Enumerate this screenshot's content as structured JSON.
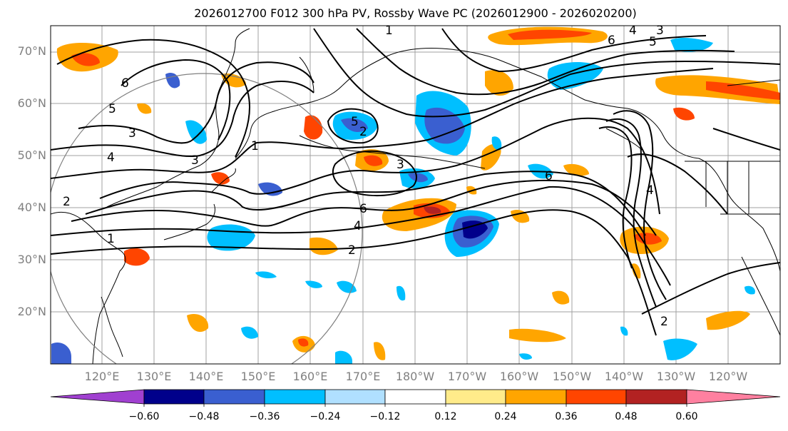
{
  "title": "2026012700 F012 300 hPa PV, Rossby Wave PC (2026012900 - 2026020200)",
  "lat_labels": [
    "70°N",
    "60°N",
    "50°N",
    "40°N",
    "30°N",
    "20°N"
  ],
  "lon_labels": [
    "120°E",
    "130°E",
    "140°E",
    "150°E",
    "160°E",
    "170°E",
    "180°W",
    "170°W",
    "160°W",
    "150°W",
    "140°W",
    "130°W",
    "120°W"
  ],
  "colorbar": {
    "colors": [
      "#a040d0",
      "#00008b",
      "#3a5fd0",
      "#00bfff",
      "#b0e0ff",
      "#ffffff",
      "#ffeb8a",
      "#ffa500",
      "#ff4500",
      "#b22222",
      "#ff80a0"
    ],
    "tick_labels": [
      "−0.60",
      "−0.48",
      "−0.36",
      "−0.24",
      "−0.12",
      "0.12",
      "0.24",
      "0.36",
      "0.48",
      "0.60"
    ]
  },
  "contour_labels": [
    "2",
    "3",
    "4",
    "5",
    "6",
    "1",
    "2",
    "3",
    "4",
    "5",
    "6",
    "1",
    "2",
    "3",
    "4",
    "5",
    "6",
    "1",
    "2",
    "3",
    "4",
    "6"
  ],
  "colors": {
    "map_line": "#000000",
    "grid": "#a0a0a0",
    "circle": "#808080"
  }
}
